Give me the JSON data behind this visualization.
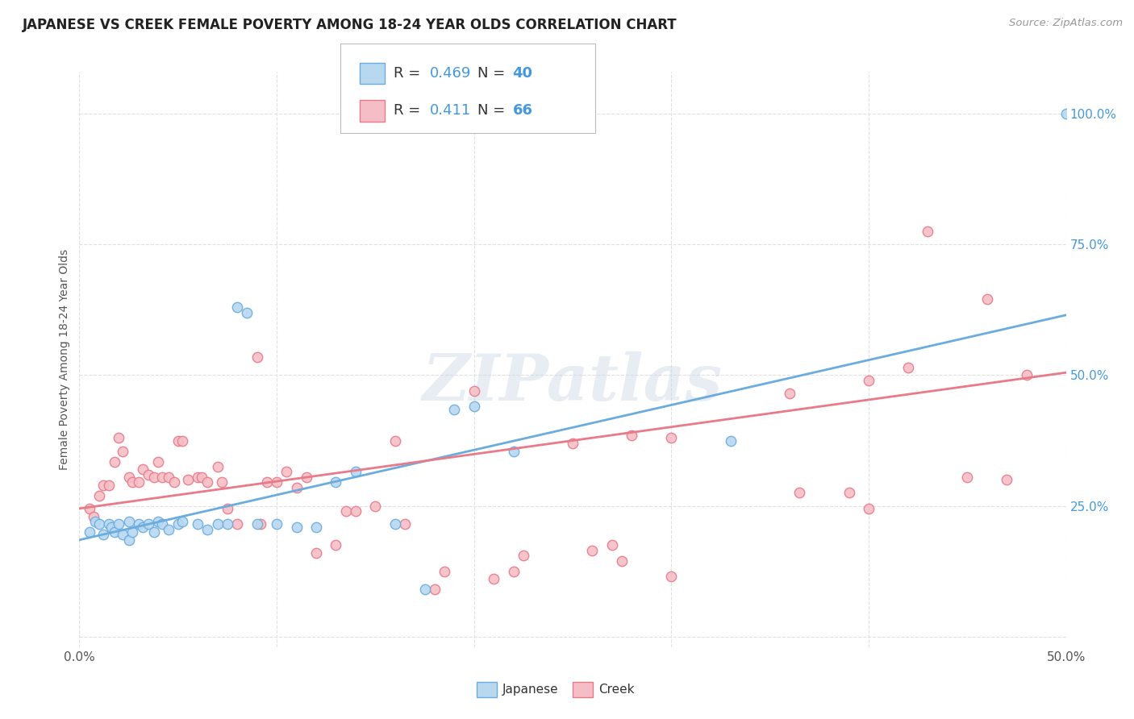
{
  "title": "JAPANESE VS CREEK FEMALE POVERTY AMONG 18-24 YEAR OLDS CORRELATION CHART",
  "source": "Source: ZipAtlas.com",
  "ylabel": "Female Poverty Among 18-24 Year Olds",
  "xlim": [
    0.0,
    0.5
  ],
  "ylim": [
    -0.02,
    1.08
  ],
  "xtick_positions": [
    0.0,
    0.1,
    0.2,
    0.3,
    0.4,
    0.5
  ],
  "xtick_labels": [
    "0.0%",
    "",
    "",
    "",
    "",
    "50.0%"
  ],
  "ytick_positions": [
    0.0,
    0.25,
    0.5,
    0.75,
    1.0
  ],
  "ytick_labels": [
    "",
    "25.0%",
    "50.0%",
    "75.0%",
    "100.0%"
  ],
  "background_color": "#ffffff",
  "grid_color": "#e0e0e0",
  "japanese_color": "#6aacde",
  "japanese_fill": "#b8d8f0",
  "creek_color": "#e87a8a",
  "creek_fill": "#f5bec6",
  "japanese_R": "0.469",
  "japanese_N": "40",
  "creek_R": "0.411",
  "creek_N": "66",
  "legend_color": "#4499dd",
  "watermark": "ZIPatlas",
  "japanese_scatter": [
    [
      0.005,
      0.2
    ],
    [
      0.008,
      0.22
    ],
    [
      0.01,
      0.215
    ],
    [
      0.012,
      0.195
    ],
    [
      0.015,
      0.215
    ],
    [
      0.016,
      0.21
    ],
    [
      0.018,
      0.2
    ],
    [
      0.02,
      0.215
    ],
    [
      0.022,
      0.195
    ],
    [
      0.025,
      0.185
    ],
    [
      0.025,
      0.22
    ],
    [
      0.027,
      0.2
    ],
    [
      0.03,
      0.215
    ],
    [
      0.032,
      0.21
    ],
    [
      0.035,
      0.215
    ],
    [
      0.038,
      0.2
    ],
    [
      0.04,
      0.22
    ],
    [
      0.042,
      0.215
    ],
    [
      0.045,
      0.205
    ],
    [
      0.05,
      0.215
    ],
    [
      0.052,
      0.22
    ],
    [
      0.06,
      0.215
    ],
    [
      0.065,
      0.205
    ],
    [
      0.07,
      0.215
    ],
    [
      0.075,
      0.215
    ],
    [
      0.08,
      0.63
    ],
    [
      0.085,
      0.62
    ],
    [
      0.09,
      0.215
    ],
    [
      0.1,
      0.215
    ],
    [
      0.11,
      0.21
    ],
    [
      0.12,
      0.21
    ],
    [
      0.13,
      0.295
    ],
    [
      0.14,
      0.315
    ],
    [
      0.16,
      0.215
    ],
    [
      0.175,
      0.09
    ],
    [
      0.19,
      0.435
    ],
    [
      0.2,
      0.44
    ],
    [
      0.22,
      0.355
    ],
    [
      0.33,
      0.375
    ],
    [
      0.5,
      1.0
    ]
  ],
  "creek_scatter": [
    [
      0.005,
      0.245
    ],
    [
      0.007,
      0.23
    ],
    [
      0.01,
      0.27
    ],
    [
      0.012,
      0.29
    ],
    [
      0.015,
      0.29
    ],
    [
      0.018,
      0.335
    ],
    [
      0.02,
      0.38
    ],
    [
      0.022,
      0.355
    ],
    [
      0.025,
      0.305
    ],
    [
      0.027,
      0.295
    ],
    [
      0.03,
      0.295
    ],
    [
      0.032,
      0.32
    ],
    [
      0.035,
      0.31
    ],
    [
      0.038,
      0.305
    ],
    [
      0.04,
      0.335
    ],
    [
      0.042,
      0.305
    ],
    [
      0.045,
      0.305
    ],
    [
      0.048,
      0.295
    ],
    [
      0.05,
      0.375
    ],
    [
      0.052,
      0.375
    ],
    [
      0.055,
      0.3
    ],
    [
      0.06,
      0.305
    ],
    [
      0.062,
      0.305
    ],
    [
      0.065,
      0.295
    ],
    [
      0.07,
      0.325
    ],
    [
      0.072,
      0.295
    ],
    [
      0.075,
      0.245
    ],
    [
      0.08,
      0.215
    ],
    [
      0.09,
      0.535
    ],
    [
      0.092,
      0.215
    ],
    [
      0.095,
      0.295
    ],
    [
      0.1,
      0.295
    ],
    [
      0.105,
      0.315
    ],
    [
      0.11,
      0.285
    ],
    [
      0.115,
      0.305
    ],
    [
      0.12,
      0.16
    ],
    [
      0.13,
      0.175
    ],
    [
      0.135,
      0.24
    ],
    [
      0.14,
      0.24
    ],
    [
      0.15,
      0.25
    ],
    [
      0.16,
      0.375
    ],
    [
      0.165,
      0.215
    ],
    [
      0.18,
      0.09
    ],
    [
      0.185,
      0.125
    ],
    [
      0.21,
      0.11
    ],
    [
      0.22,
      0.125
    ],
    [
      0.225,
      0.155
    ],
    [
      0.26,
      0.165
    ],
    [
      0.27,
      0.175
    ],
    [
      0.275,
      0.145
    ],
    [
      0.28,
      0.385
    ],
    [
      0.3,
      0.115
    ],
    [
      0.36,
      0.465
    ],
    [
      0.365,
      0.275
    ],
    [
      0.39,
      0.275
    ],
    [
      0.4,
      0.245
    ],
    [
      0.42,
      0.515
    ],
    [
      0.43,
      0.775
    ],
    [
      0.45,
      0.305
    ],
    [
      0.46,
      0.645
    ],
    [
      0.47,
      0.3
    ],
    [
      0.48,
      0.5
    ],
    [
      0.25,
      0.37
    ],
    [
      0.2,
      0.47
    ],
    [
      0.3,
      0.38
    ],
    [
      0.4,
      0.49
    ]
  ],
  "japanese_line": [
    0.0,
    0.185,
    0.5,
    0.615
  ],
  "creek_line": [
    0.0,
    0.245,
    0.5,
    0.505
  ]
}
